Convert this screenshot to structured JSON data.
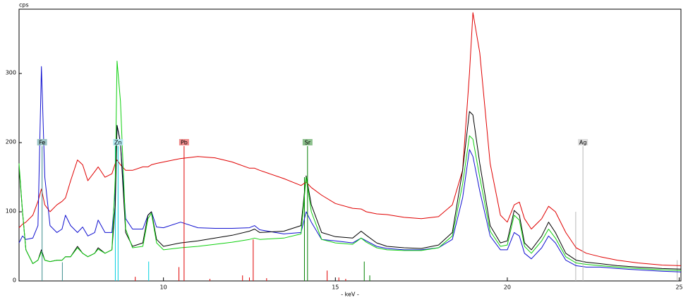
{
  "chart_data": {
    "type": "line",
    "y_label": "cps",
    "x_label": "- keV -",
    "xlim": [
      5.8,
      25.05
    ],
    "ylim": [
      0,
      393
    ],
    "xticks": [
      10,
      15,
      20,
      25
    ],
    "yticks": [
      0,
      100,
      200,
      300
    ],
    "x": [
      5.8,
      5.9,
      6.0,
      6.2,
      6.35,
      6.45,
      6.55,
      6.7,
      6.9,
      7.05,
      7.15,
      7.3,
      7.5,
      7.65,
      7.8,
      8.0,
      8.1,
      8.3,
      8.5,
      8.6,
      8.65,
      8.75,
      8.9,
      9.1,
      9.4,
      9.55,
      9.65,
      9.8,
      10.0,
      10.5,
      11.0,
      11.5,
      12.0,
      12.5,
      12.65,
      12.8,
      13.5,
      14.0,
      14.15,
      14.3,
      14.6,
      15.0,
      15.5,
      15.75,
      15.9,
      16.2,
      16.5,
      17.0,
      17.5,
      18.0,
      18.4,
      18.7,
      18.9,
      19.0,
      19.2,
      19.5,
      19.8,
      20.0,
      20.2,
      20.35,
      20.5,
      20.7,
      21.0,
      21.2,
      21.4,
      21.7,
      22.0,
      22.3,
      22.7,
      23.2,
      23.8,
      24.5,
      25.05
    ],
    "series": [
      {
        "color": "#e00000",
        "values": [
          77,
          82,
          85,
          95,
          115,
          133,
          110,
          100,
          110,
          115,
          120,
          145,
          175,
          168,
          145,
          158,
          165,
          150,
          155,
          170,
          175,
          168,
          160,
          160,
          165,
          165,
          168,
          170,
          172,
          177,
          180,
          178,
          172,
          163,
          163,
          160,
          148,
          138,
          143,
          135,
          124,
          112,
          105,
          104,
          100,
          97,
          96,
          92,
          90,
          93,
          110,
          160,
          300,
          388,
          330,
          170,
          95,
          85,
          110,
          114,
          90,
          75,
          90,
          108,
          100,
          70,
          48,
          40,
          35,
          30,
          26,
          23,
          22
        ]
      },
      {
        "color": "#1010d0",
        "values": [
          55,
          65,
          60,
          62,
          80,
          310,
          150,
          80,
          70,
          75,
          95,
          80,
          70,
          78,
          65,
          70,
          88,
          70,
          70,
          130,
          225,
          200,
          90,
          75,
          75,
          95,
          100,
          78,
          77,
          85,
          77,
          76,
          76,
          77,
          80,
          74,
          68,
          70,
          100,
          85,
          60,
          58,
          55,
          62,
          58,
          50,
          47,
          45,
          45,
          48,
          60,
          120,
          190,
          180,
          130,
          65,
          45,
          45,
          70,
          65,
          40,
          32,
          48,
          65,
          55,
          30,
          22,
          20,
          20,
          18,
          16,
          14,
          13
        ]
      },
      {
        "color": "#000000",
        "values": [
          165,
          100,
          45,
          25,
          30,
          45,
          30,
          28,
          30,
          30,
          35,
          35,
          50,
          40,
          35,
          40,
          48,
          40,
          45,
          110,
          225,
          200,
          70,
          50,
          55,
          95,
          100,
          60,
          50,
          55,
          58,
          62,
          66,
          72,
          75,
          70,
          72,
          80,
          152,
          110,
          70,
          64,
          62,
          72,
          66,
          55,
          50,
          48,
          47,
          52,
          70,
          160,
          245,
          240,
          170,
          80,
          55,
          58,
          102,
          95,
          55,
          45,
          65,
          85,
          70,
          40,
          30,
          27,
          25,
          22,
          20,
          18,
          17
        ]
      },
      {
        "color": "#10d010",
        "values": [
          170,
          100,
          45,
          25,
          30,
          42,
          30,
          28,
          30,
          30,
          35,
          35,
          48,
          40,
          35,
          40,
          46,
          40,
          45,
          150,
          318,
          260,
          75,
          48,
          50,
          90,
          98,
          55,
          45,
          48,
          50,
          53,
          56,
          60,
          62,
          60,
          62,
          68,
          150,
          100,
          60,
          55,
          53,
          62,
          56,
          48,
          45,
          44,
          44,
          48,
          65,
          140,
          210,
          205,
          150,
          72,
          50,
          52,
          95,
          88,
          50,
          40,
          58,
          75,
          62,
          35,
          26,
          24,
          22,
          20,
          18,
          16,
          15
        ]
      }
    ],
    "markers": [
      {
        "label": "Fe",
        "x": 6.47,
        "height": 195,
        "color": "#3c8c8c",
        "label_color": "#9cc4c4"
      },
      {
        "label": "Zn",
        "x": 8.68,
        "height": 195,
        "color": "#00d0e0",
        "label_color": "#b0e8f0"
      },
      {
        "label": "Pb",
        "x": 10.6,
        "height": 195,
        "color": "#e00000",
        "label_color": "#f08c8c"
      },
      {
        "label": "Sr",
        "x": 14.19,
        "height": 195,
        "color": "#008000",
        "label_color": "#8cc08c"
      },
      {
        "label": "Ag",
        "x": 22.2,
        "height": 195,
        "color": "#b8b8b8",
        "label_color": "#dcdcdc"
      }
    ],
    "reference_lines": [
      {
        "x": 7.06,
        "height": 27,
        "color": "#3c8c8c"
      },
      {
        "x": 8.6,
        "height": 195,
        "color": "#00d0e0"
      },
      {
        "x": 9.57,
        "height": 28,
        "color": "#00d0e0"
      },
      {
        "x": 9.18,
        "height": 6,
        "color": "#e00000"
      },
      {
        "x": 10.45,
        "height": 20,
        "color": "#e00000"
      },
      {
        "x": 11.35,
        "height": 3,
        "color": "#e00000"
      },
      {
        "x": 12.3,
        "height": 8,
        "color": "#e00000"
      },
      {
        "x": 12.5,
        "height": 5,
        "color": "#e00000"
      },
      {
        "x": 12.61,
        "height": 60,
        "color": "#e00000"
      },
      {
        "x": 13.0,
        "height": 4,
        "color": "#e00000"
      },
      {
        "x": 14.76,
        "height": 15,
        "color": "#e00000"
      },
      {
        "x": 15.1,
        "height": 5,
        "color": "#e00000"
      },
      {
        "x": 15.3,
        "height": 3,
        "color": "#e00000"
      },
      {
        "x": 14.1,
        "height": 150,
        "color": "#008000"
      },
      {
        "x": 15.84,
        "height": 28,
        "color": "#008000"
      },
      {
        "x": 16.0,
        "height": 8,
        "color": "#008000"
      },
      {
        "x": 21.99,
        "height": 100,
        "color": "#b8b8b8"
      },
      {
        "x": 24.94,
        "height": 30,
        "color": "#b8b8b8"
      }
    ]
  }
}
